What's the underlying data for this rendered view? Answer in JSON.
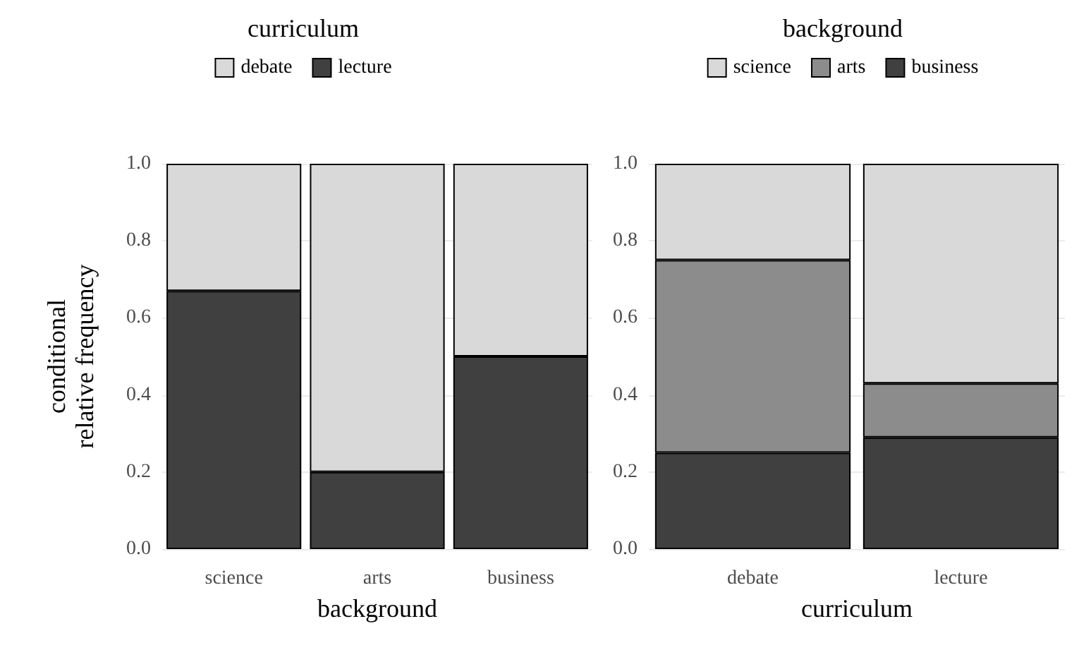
{
  "chart_data": [
    {
      "type": "bar",
      "stacked": true,
      "legend_title": "curriculum",
      "xlabel": "background",
      "ylabel": "conditional\nrelative frequency",
      "categories": [
        "science",
        "arts",
        "business"
      ],
      "series": [
        {
          "name": "lecture",
          "color": "#404040",
          "values": [
            0.67,
            0.2,
            0.5
          ]
        },
        {
          "name": "debate",
          "color": "#d9d9d9",
          "values": [
            0.33,
            0.8,
            0.5
          ]
        }
      ],
      "ylim": [
        0,
        1
      ],
      "yticks": [
        {
          "value": 0,
          "label": "0.0"
        },
        {
          "value": 0.2,
          "label": "0.2"
        },
        {
          "value": 0.4,
          "label": "0.4"
        },
        {
          "value": 0.6,
          "label": "0.6"
        },
        {
          "value": 0.8,
          "label": "0.8"
        },
        {
          "value": 1,
          "label": "1.0"
        }
      ],
      "grid": "y",
      "legend": "top"
    },
    {
      "type": "bar",
      "stacked": true,
      "legend_title": "background",
      "xlabel": "curriculum",
      "categories": [
        "debate",
        "lecture"
      ],
      "series": [
        {
          "name": "business",
          "color": "#404040",
          "values": [
            0.25,
            0.29
          ]
        },
        {
          "name": "arts",
          "color": "#8c8c8c",
          "values": [
            0.5,
            0.14
          ]
        },
        {
          "name": "science",
          "color": "#d9d9d9",
          "values": [
            0.25,
            0.57
          ]
        }
      ],
      "ylim": [
        0,
        1
      ],
      "yticks": [
        {
          "value": 0,
          "label": "0.0"
        },
        {
          "value": 0.2,
          "label": "0.2"
        },
        {
          "value": 0.4,
          "label": "0.4"
        },
        {
          "value": 0.6,
          "label": "0.6"
        },
        {
          "value": 0.8,
          "label": "0.8"
        },
        {
          "value": 1,
          "label": "1.0"
        }
      ],
      "grid": "y",
      "legend": "top"
    }
  ]
}
